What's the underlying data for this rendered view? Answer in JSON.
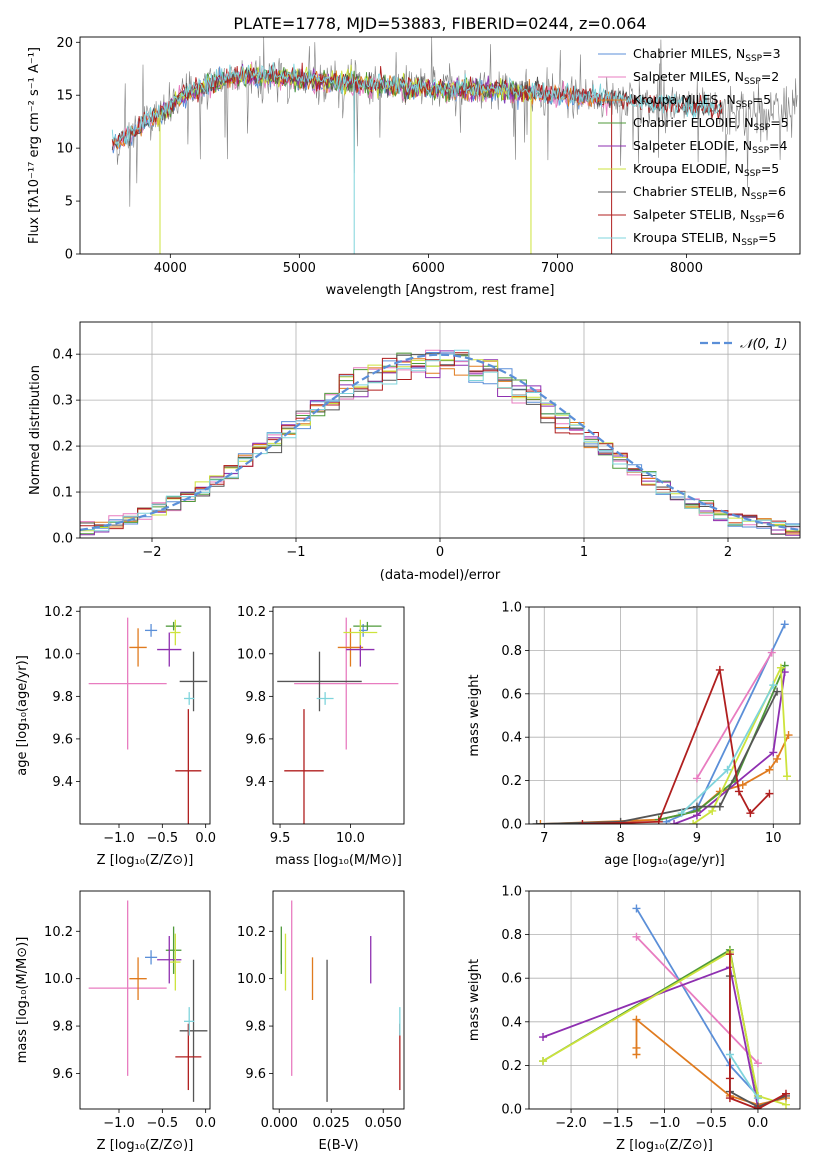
{
  "title": "PLATE=1778, MJD=53883, FIBERID=0244, z=0.064",
  "colors": {
    "Chabrier MILES": "#5b8fd8",
    "Salpeter MILES": "#e87cc0",
    "Kroupa MILES": "#e07b1f",
    "Chabrier ELODIE": "#4f9a3a",
    "Salpeter ELODIE": "#8e2fb0",
    "Kroupa ELODIE": "#cde33c",
    "Chabrier STELIB": "#555555",
    "Salpeter STELIB": "#b01f1f",
    "Kroupa STELIB": "#7fd4dc"
  },
  "chart_data": [
    {
      "id": "spectrum",
      "type": "line",
      "xlabel": "wavelength [Angstrom, rest frame]",
      "ylabel": "Flux [fλ10⁻¹⁷ erg cm⁻² s⁻¹ A⁻¹]",
      "xlim": [
        3300,
        8880
      ],
      "ylim": [
        0,
        20.5
      ],
      "xticks": [
        4000,
        5000,
        6000,
        7000,
        8000
      ],
      "yticks": [
        0,
        5,
        10,
        15,
        20
      ],
      "legend_position": "top-right",
      "legend": [
        {
          "label": "Chabrier MILES, N",
          "sub": "SSP",
          "tail": "=3",
          "series": "Chabrier MILES"
        },
        {
          "label": "Salpeter MILES, N",
          "sub": "SSP",
          "tail": "=2",
          "series": "Salpeter MILES"
        },
        {
          "label": "Kroupa MILES, N",
          "sub": "SSP",
          "tail": "=5",
          "series": "Kroupa MILES"
        },
        {
          "label": "Chabrier ELODIE, N",
          "sub": "SSP",
          "tail": "=5",
          "series": "Chabrier ELODIE"
        },
        {
          "label": "Salpeter ELODIE, N",
          "sub": "SSP",
          "tail": "=4",
          "series": "Salpeter ELODIE"
        },
        {
          "label": "Kroupa ELODIE, N",
          "sub": "SSP",
          "tail": "=5",
          "series": "Kroupa ELODIE"
        },
        {
          "label": "Chabrier STELIB, N",
          "sub": "SSP",
          "tail": "=6",
          "series": "Chabrier STELIB"
        },
        {
          "label": "Salpeter STELIB, N",
          "sub": "SSP",
          "tail": "=6",
          "series": "Salpeter STELIB"
        },
        {
          "label": "Kroupa STELIB, N",
          "sub": "SSP",
          "tail": "=5",
          "series": "Kroupa STELIB"
        }
      ],
      "continuum": [
        [
          3600,
          10.5
        ],
        [
          3700,
          11.5
        ],
        [
          3800,
          12.5
        ],
        [
          3900,
          13.0
        ],
        [
          4000,
          13.8
        ],
        [
          4100,
          15.0
        ],
        [
          4300,
          16.0
        ],
        [
          4500,
          16.8
        ],
        [
          4700,
          16.8
        ],
        [
          5000,
          16.5
        ],
        [
          5500,
          16.0
        ],
        [
          6000,
          15.6
        ],
        [
          6500,
          15.5
        ],
        [
          7000,
          15.0
        ],
        [
          7500,
          14.5
        ],
        [
          8000,
          13.8
        ],
        [
          8250,
          13.4
        ]
      ],
      "obs_range": [
        3560,
        8860
      ],
      "model_ranges": {
        "Chabrier MILES": [
          3550,
          7400
        ],
        "Salpeter MILES": [
          3550,
          7400
        ],
        "Kroupa MILES": [
          3550,
          7400
        ],
        "Chabrier ELODIE": [
          3880,
          6800
        ],
        "Salpeter ELODIE": [
          3880,
          6800
        ],
        "Kroupa ELODIE": [
          3880,
          6800
        ],
        "Chabrier STELIB": [
          3550,
          8280
        ],
        "Salpeter STELIB": [
          3550,
          8280
        ],
        "Kroupa STELIB": [
          3550,
          8280
        ]
      },
      "dips": [
        {
          "wl": 3920,
          "series": "Kroupa ELODIE",
          "min": 0
        },
        {
          "wl": 5425,
          "series": "Kroupa STELIB",
          "min": 0
        },
        {
          "wl": 6795,
          "series": "Kroupa ELODIE",
          "min": 0
        },
        {
          "wl": 7420,
          "series": "Salpeter STELIB",
          "min": 0
        }
      ]
    },
    {
      "id": "residuals",
      "type": "histogram",
      "xlabel": "(data-model)/error",
      "ylabel": "Normed distribution",
      "xlim": [
        -2.5,
        2.5
      ],
      "ylim": [
        0,
        0.47
      ],
      "xticks": [
        -2,
        -1,
        0,
        1,
        2
      ],
      "yticks": [
        0.0,
        0.1,
        0.2,
        0.3,
        0.4
      ],
      "grid": true,
      "legend_position": "top-right",
      "reference": {
        "label": "𝒩(0, 1)",
        "mean": 0,
        "std": 1
      },
      "bin_width": 0.1,
      "bin_start": -2.5
    },
    {
      "id": "age_vs_Z",
      "type": "errorbar",
      "xlabel": "Z [log₁₀(Z/Z⊙)]",
      "ylabel": "age  [log₁₀(age/yr)]",
      "xlim": [
        -1.45,
        0.05
      ],
      "ylim": [
        9.2,
        10.22
      ],
      "xticks": [
        -1.0,
        -0.5,
        0.0
      ],
      "yticks": [
        9.4,
        9.6,
        9.8,
        10.0,
        10.2
      ],
      "points": [
        {
          "series": "Chabrier MILES",
          "x": -0.63,
          "xerr": 0.07,
          "y": 10.11,
          "yerr": 0.03
        },
        {
          "series": "Salpeter MILES",
          "x": -0.9,
          "xerr": 0.45,
          "y": 9.86,
          "yerr": 0.31
        },
        {
          "series": "Kroupa MILES",
          "x": -0.78,
          "xerr": 0.1,
          "y": 10.03,
          "yerr": 0.09
        },
        {
          "series": "Chabrier ELODIE",
          "x": -0.37,
          "xerr": 0.09,
          "y": 10.13,
          "yerr": 0.02
        },
        {
          "series": "Salpeter ELODIE",
          "x": -0.42,
          "xerr": 0.14,
          "y": 10.02,
          "yerr": 0.08
        },
        {
          "series": "Kroupa ELODIE",
          "x": -0.35,
          "xerr": 0.06,
          "y": 10.1,
          "yerr": 0.06
        },
        {
          "series": "Chabrier STELIB",
          "x": -0.14,
          "xerr": 0.16,
          "y": 9.87,
          "yerr": 0.14
        },
        {
          "series": "Salpeter STELIB",
          "x": -0.2,
          "xerr": 0.15,
          "y": 9.45,
          "yerr": 0.29
        },
        {
          "series": "Kroupa STELIB",
          "x": -0.19,
          "xerr": 0.06,
          "y": 9.79,
          "yerr": 0.03
        }
      ]
    },
    {
      "id": "age_vs_mass",
      "type": "errorbar",
      "xlabel": "mass [log₁₀(M/M⊙)]",
      "ylabel": "",
      "xlim": [
        9.45,
        10.38
      ],
      "ylim": [
        9.2,
        10.22
      ],
      "xticks": [
        9.5,
        10.0
      ],
      "yticks": [
        9.4,
        9.6,
        9.8,
        10.0,
        10.2
      ],
      "points": [
        {
          "series": "Chabrier MILES",
          "x": 10.09,
          "xerr": 0.03,
          "y": 10.11,
          "yerr": 0.03
        },
        {
          "series": "Salpeter MILES",
          "x": 9.97,
          "xerr": 0.37,
          "y": 9.86,
          "yerr": 0.31
        },
        {
          "series": "Kroupa MILES",
          "x": 10.0,
          "xerr": 0.09,
          "y": 10.03,
          "yerr": 0.09
        },
        {
          "series": "Chabrier ELODIE",
          "x": 10.12,
          "xerr": 0.1,
          "y": 10.13,
          "yerr": 0.02
        },
        {
          "series": "Salpeter ELODIE",
          "x": 10.07,
          "xerr": 0.1,
          "y": 10.02,
          "yerr": 0.08
        },
        {
          "series": "Kroupa ELODIE",
          "x": 10.07,
          "xerr": 0.12,
          "y": 10.1,
          "yerr": 0.06
        },
        {
          "series": "Chabrier STELIB",
          "x": 9.78,
          "xerr": 0.3,
          "y": 9.87,
          "yerr": 0.14
        },
        {
          "series": "Salpeter STELIB",
          "x": 9.67,
          "xerr": 0.14,
          "y": 9.45,
          "yerr": 0.29
        },
        {
          "series": "Kroupa STELIB",
          "x": 9.82,
          "xerr": 0.06,
          "y": 9.79,
          "yerr": 0.03
        }
      ]
    },
    {
      "id": "mass_weight_vs_age",
      "type": "line",
      "xlabel": "age  [log₁₀(age/yr)]",
      "ylabel": "mass weight",
      "xlim": [
        6.8,
        10.35
      ],
      "ylim": [
        0,
        1.0
      ],
      "xticks": [
        7,
        8,
        9,
        10
      ],
      "yticks": [
        0.0,
        0.2,
        0.4,
        0.6,
        0.8,
        1.0
      ],
      "grid": true,
      "series": [
        {
          "name": "Chabrier MILES",
          "x": [
            8.6,
            9.0,
            10.15
          ],
          "y": [
            0.01,
            0.07,
            0.92
          ]
        },
        {
          "name": "Salpeter MILES",
          "x": [
            9.0,
            9.98
          ],
          "y": [
            0.21,
            0.79
          ]
        },
        {
          "name": "Kroupa MILES",
          "x": [
            6.95,
            8.5,
            9.0,
            9.3,
            9.6,
            9.95,
            10.05,
            10.2
          ],
          "y": [
            0.0,
            0.02,
            0.06,
            0.15,
            0.18,
            0.25,
            0.3,
            0.41
          ]
        },
        {
          "name": "Chabrier ELODIE",
          "x": [
            8.5,
            9.0,
            9.5,
            10.15
          ],
          "y": [
            0.02,
            0.06,
            0.2,
            0.73
          ]
        },
        {
          "name": "Salpeter ELODIE",
          "x": [
            8.7,
            9.0,
            10.0,
            10.15
          ],
          "y": [
            0.0,
            0.04,
            0.33,
            0.7
          ]
        },
        {
          "name": "Kroupa ELODIE",
          "x": [
            8.95,
            9.2,
            10.1,
            10.18
          ],
          "y": [
            0.0,
            0.06,
            0.72,
            0.22
          ]
        },
        {
          "name": "Chabrier STELIB",
          "x": [
            6.9,
            8.0,
            9.0,
            9.3,
            10.05
          ],
          "y": [
            0.0,
            0.01,
            0.08,
            0.08,
            0.61
          ]
        },
        {
          "name": "Salpeter STELIB",
          "x": [
            7.5,
            8.5,
            9.3,
            9.55,
            9.7,
            9.95
          ],
          "y": [
            0.0,
            0.01,
            0.71,
            0.15,
            0.05,
            0.14
          ]
        },
        {
          "name": "Kroupa STELIB",
          "x": [
            8.8,
            9.4,
            10.0
          ],
          "y": [
            0.05,
            0.25,
            0.64
          ]
        }
      ]
    },
    {
      "id": "mass_vs_Z",
      "type": "errorbar",
      "xlabel": "Z [log₁₀(Z/Z⊙)]",
      "ylabel": "mass [log₁₀(M/M⊙)]",
      "xlim": [
        -1.45,
        0.05
      ],
      "ylim": [
        9.45,
        10.37
      ],
      "xticks": [
        -1.0,
        -0.5,
        0.0
      ],
      "yticks": [
        9.6,
        9.8,
        10.0,
        10.2
      ],
      "points": [
        {
          "series": "Chabrier MILES",
          "x": -0.63,
          "xerr": 0.07,
          "y": 10.09,
          "yerr": 0.03
        },
        {
          "series": "Salpeter MILES",
          "x": -0.9,
          "xerr": 0.45,
          "y": 9.96,
          "yerr": 0.37
        },
        {
          "series": "Kroupa MILES",
          "x": -0.78,
          "xerr": 0.1,
          "y": 10.0,
          "yerr": 0.09
        },
        {
          "series": "Chabrier ELODIE",
          "x": -0.37,
          "xerr": 0.09,
          "y": 10.12,
          "yerr": 0.1
        },
        {
          "series": "Salpeter ELODIE",
          "x": -0.42,
          "xerr": 0.14,
          "y": 10.08,
          "yerr": 0.1
        },
        {
          "series": "Kroupa ELODIE",
          "x": -0.35,
          "xerr": 0.06,
          "y": 10.07,
          "yerr": 0.12
        },
        {
          "series": "Chabrier STELIB",
          "x": -0.14,
          "xerr": 0.16,
          "y": 9.78,
          "yerr": 0.3
        },
        {
          "series": "Salpeter STELIB",
          "x": -0.2,
          "xerr": 0.15,
          "y": 9.67,
          "yerr": 0.14
        },
        {
          "series": "Kroupa STELIB",
          "x": -0.19,
          "xerr": 0.06,
          "y": 9.82,
          "yerr": 0.06
        }
      ]
    },
    {
      "id": "mass_vs_ebv",
      "type": "errorbar",
      "xlabel": "E(B-V)",
      "ylabel": "",
      "xlim": [
        -0.003,
        0.06
      ],
      "ylim": [
        9.45,
        10.37
      ],
      "xticks": [
        0.0,
        0.025,
        0.05
      ],
      "xticklabels": [
        "0.000",
        "0.025",
        "0.050"
      ],
      "yticks": [
        9.6,
        9.8,
        10.0,
        10.2
      ],
      "points": [
        {
          "series": "Chabrier MILES",
          "x": 0.001,
          "y": 10.09,
          "yerr": 0.03
        },
        {
          "series": "Salpeter MILES",
          "x": 0.006,
          "y": 9.96,
          "yerr": 0.37
        },
        {
          "series": "Kroupa MILES",
          "x": 0.016,
          "y": 10.0,
          "yerr": 0.09
        },
        {
          "series": "Chabrier ELODIE",
          "x": 0.001,
          "y": 10.12,
          "yerr": 0.1
        },
        {
          "series": "Salpeter ELODIE",
          "x": 0.044,
          "y": 10.08,
          "yerr": 0.1
        },
        {
          "series": "Kroupa ELODIE",
          "x": 0.003,
          "y": 10.07,
          "yerr": 0.12
        },
        {
          "series": "Chabrier STELIB",
          "x": 0.023,
          "y": 9.78,
          "yerr": 0.3
        },
        {
          "series": "Salpeter STELIB",
          "x": 0.058,
          "y": 9.67,
          "yerr": 0.14
        },
        {
          "series": "Kroupa STELIB",
          "x": 0.058,
          "y": 9.82,
          "yerr": 0.06
        }
      ]
    },
    {
      "id": "mass_weight_vs_Z",
      "type": "line",
      "xlabel": "Z [log₁₀(Z/Z⊙)]",
      "ylabel": "mass weight",
      "xlim": [
        -2.45,
        0.45
      ],
      "ylim": [
        0,
        1.0
      ],
      "xticks": [
        -2.0,
        -1.5,
        -1.0,
        -0.5,
        0.0
      ],
      "yticks": [
        0.0,
        0.2,
        0.4,
        0.6,
        0.8,
        1.0
      ],
      "grid": true,
      "series": [
        {
          "name": "Chabrier MILES",
          "x": [
            -1.3,
            -0.3,
            0.0
          ],
          "y": [
            0.92,
            0.2,
            0.06
          ]
        },
        {
          "name": "Salpeter MILES",
          "x": [
            -1.3,
            0.0
          ],
          "y": [
            0.79,
            0.21
          ]
        },
        {
          "name": "Kroupa MILES",
          "x": [
            -1.3,
            -1.3,
            -1.3,
            -0.3,
            0.0,
            0.3
          ],
          "y": [
            0.25,
            0.28,
            0.41,
            0.06,
            0.02,
            0.05
          ]
        },
        {
          "name": "Chabrier ELODIE",
          "x": [
            -2.3,
            -0.3,
            0.0
          ],
          "y": [
            0.22,
            0.73,
            0.05
          ]
        },
        {
          "name": "Salpeter ELODIE",
          "x": [
            -2.3,
            -0.3,
            0.0
          ],
          "y": [
            0.33,
            0.65,
            0.01
          ]
        },
        {
          "name": "Kroupa ELODIE",
          "x": [
            -2.3,
            -0.3,
            0.0,
            0.3
          ],
          "y": [
            0.22,
            0.72,
            0.06,
            0.02
          ]
        },
        {
          "name": "Chabrier STELIB",
          "x": [
            -0.3,
            -0.3,
            0.0,
            0.3
          ],
          "y": [
            0.61,
            0.08,
            0.01,
            0.06
          ]
        },
        {
          "name": "Salpeter STELIB",
          "x": [
            -0.3,
            -0.3,
            -0.3,
            0.0,
            0.3
          ],
          "y": [
            0.71,
            0.14,
            0.05,
            0.0,
            0.07
          ]
        },
        {
          "name": "Kroupa STELIB",
          "x": [
            -0.3,
            0.0
          ],
          "y": [
            0.25,
            0.05
          ]
        }
      ]
    }
  ]
}
